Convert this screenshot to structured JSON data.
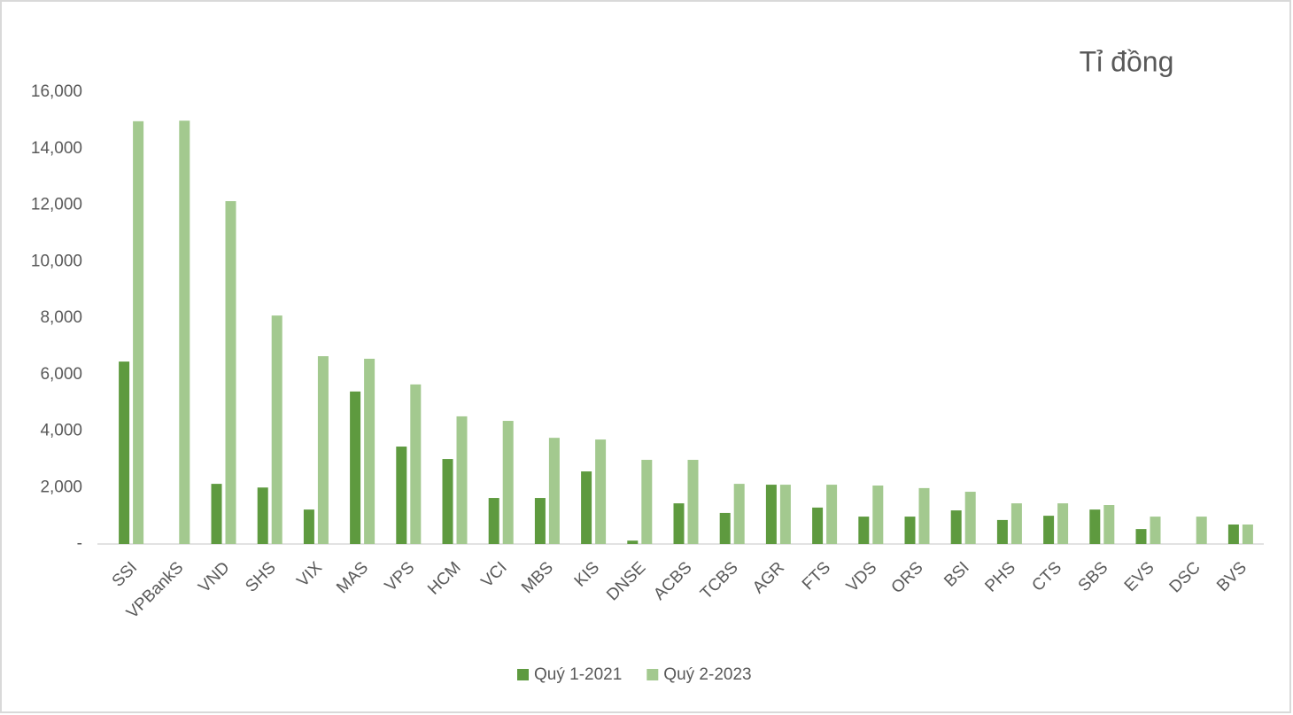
{
  "chart_data": {
    "type": "bar",
    "title": "Tỉ đồng",
    "categories": [
      "SSI",
      "VPBankS",
      "VND",
      "SHS",
      "VIX",
      "MAS",
      "VPS",
      "HCM",
      "VCI",
      "MBS",
      "KIS",
      "DNSE",
      "ACBS",
      "TCBS",
      "AGR",
      "FTS",
      "VDS",
      "ORS",
      "BSI",
      "PHS",
      "CTS",
      "SBS",
      "EVS",
      "DSC",
      "BVS"
    ],
    "series": [
      {
        "name": "Quý 1-2021",
        "color": "#5e9a3f",
        "values": [
          6460,
          null,
          2130,
          2000,
          1220,
          5400,
          3450,
          3010,
          1630,
          1630,
          2570,
          120,
          1440,
          1100,
          2100,
          1290,
          970,
          970,
          1190,
          850,
          1000,
          1220,
          530,
          null,
          690
        ]
      },
      {
        "name": "Quý 2-2023",
        "color": "#a3c98f",
        "values": [
          14970,
          14990,
          12140,
          8090,
          6650,
          6560,
          5650,
          4520,
          4360,
          3760,
          3700,
          2980,
          2980,
          2130,
          2100,
          2100,
          2070,
          1980,
          1850,
          1440,
          1440,
          1380,
          970,
          970,
          690
        ]
      }
    ],
    "ylim": [
      0,
      16000
    ],
    "yticks": [
      {
        "value": 0,
        "label": "-"
      },
      {
        "value": 2000,
        "label": "2,000"
      },
      {
        "value": 4000,
        "label": "4,000"
      },
      {
        "value": 6000,
        "label": "6,000"
      },
      {
        "value": 8000,
        "label": "8,000"
      },
      {
        "value": 10000,
        "label": "10,000"
      },
      {
        "value": 12000,
        "label": "12,000"
      },
      {
        "value": 14000,
        "label": "14,000"
      },
      {
        "value": 16000,
        "label": "16,000"
      }
    ],
    "grid": false,
    "legend": "bottom"
  }
}
